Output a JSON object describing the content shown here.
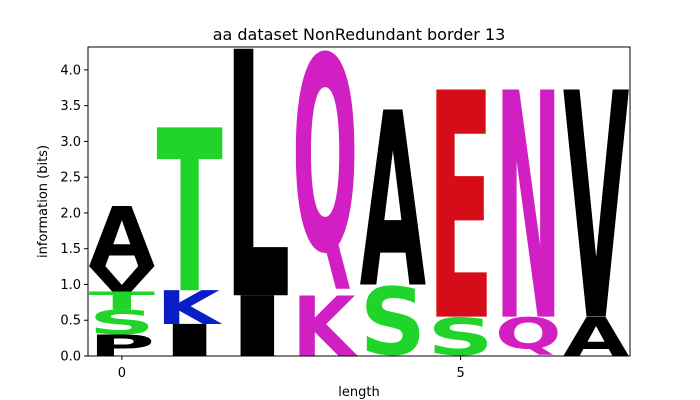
{
  "chart_data": {
    "type": "sequence-logo",
    "title": "aa dataset NonRedundant border 13",
    "xlabel": "length",
    "ylabel": "information (bits)",
    "xlim": [
      -0.5,
      7.5
    ],
    "ylim": [
      0,
      4.32
    ],
    "x_ticks": [
      0,
      5
    ],
    "y_ticks": [
      0.0,
      0.5,
      1.0,
      1.5,
      2.0,
      2.5,
      3.0,
      3.5,
      4.0
    ],
    "y_tick_labels": [
      "0.0",
      "0.5",
      "1.0",
      "1.5",
      "2.0",
      "2.5",
      "3.0",
      "3.5",
      "4.0"
    ],
    "colors": {
      "green": "#21d42a",
      "black": "#000000",
      "blue": "#0a1ec8",
      "red": "#d60c18",
      "magenta": "#d21fc3"
    },
    "positions": [
      {
        "x": 0,
        "letters": [
          {
            "char": "P",
            "height": 0.3,
            "color": "black"
          },
          {
            "char": "S",
            "height": 0.35,
            "color": "green"
          },
          {
            "char": "T",
            "height": 0.25,
            "color": "green"
          },
          {
            "char": "V",
            "height": 0.35,
            "color": "black"
          },
          {
            "char": "A",
            "height": 0.85,
            "color": "black"
          }
        ]
      },
      {
        "x": 1,
        "letters": [
          {
            "char": "I",
            "height": 0.45,
            "color": "black"
          },
          {
            "char": "K",
            "height": 0.47,
            "color": "blue"
          },
          {
            "char": "T",
            "height": 2.28,
            "color": "green"
          }
        ]
      },
      {
        "x": 2,
        "letters": [
          {
            "char": "I",
            "height": 0.85,
            "color": "black"
          },
          {
            "char": "L",
            "height": 3.45,
            "color": "black"
          }
        ]
      },
      {
        "x": 3,
        "letters": [
          {
            "char": "K",
            "height": 0.85,
            "color": "magenta"
          },
          {
            "char": "Q",
            "height": 3.45,
            "color": "magenta"
          }
        ]
      },
      {
        "x": 4,
        "letters": [
          {
            "char": "S",
            "height": 1.0,
            "color": "green"
          },
          {
            "char": "A",
            "height": 2.45,
            "color": "black"
          }
        ]
      },
      {
        "x": 5,
        "letters": [
          {
            "char": "S",
            "height": 0.55,
            "color": "green"
          },
          {
            "char": "E",
            "height": 3.18,
            "color": "red"
          }
        ]
      },
      {
        "x": 6,
        "letters": [
          {
            "char": "Q",
            "height": 0.55,
            "color": "magenta"
          },
          {
            "char": "N",
            "height": 3.18,
            "color": "magenta"
          }
        ]
      },
      {
        "x": 7,
        "letters": [
          {
            "char": "A",
            "height": 0.55,
            "color": "black"
          },
          {
            "char": "V",
            "height": 3.18,
            "color": "black"
          }
        ]
      }
    ]
  }
}
